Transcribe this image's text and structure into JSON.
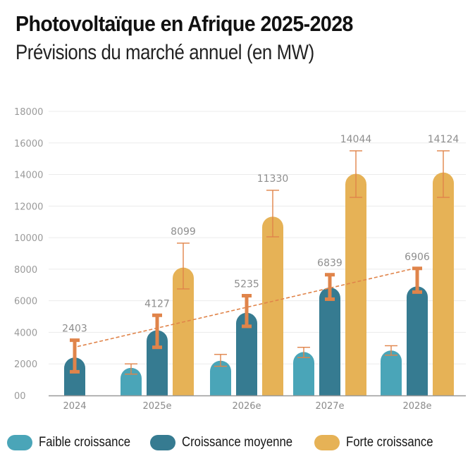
{
  "chart_data": {
    "type": "bar",
    "title": "Photovoltaïque en Afrique 2025-2028",
    "subtitle": "Prévisions du marché annuel (en MW)",
    "xlabel": "",
    "ylabel": "",
    "ylim": [
      0,
      18000
    ],
    "grid": true,
    "legend_position": "bottom",
    "y_ticks": [
      {
        "value": 0,
        "label": "00"
      },
      {
        "value": 2000,
        "label": "2000"
      },
      {
        "value": 4000,
        "label": "4000"
      },
      {
        "value": 6000,
        "label": "6000"
      },
      {
        "value": 8000,
        "label": "8000"
      },
      {
        "value": 10000,
        "label": "10000"
      },
      {
        "value": 12000,
        "label": "12000"
      },
      {
        "value": 14000,
        "label": "14000"
      },
      {
        "value": 16000,
        "label": "16000"
      },
      {
        "value": 18000,
        "label": "18000"
      }
    ],
    "categories": [
      "2024",
      "2025e",
      "2026e",
      "2027e",
      "2028e"
    ],
    "series": [
      {
        "name": "Faible croissance",
        "color": "#4aa5b8",
        "values": [
          null,
          1750,
          2200,
          2750,
          2850
        ],
        "error_low": [
          null,
          1350,
          1850,
          2400,
          2550
        ],
        "error_high": [
          null,
          2000,
          2600,
          3050,
          3150
        ],
        "labels": [
          null,
          null,
          null,
          null,
          null
        ]
      },
      {
        "name": "Croissance moyenne",
        "color": "#367b91",
        "values": [
          2403,
          4127,
          5235,
          6839,
          6906
        ],
        "error_low": [
          1500,
          3050,
          4380,
          6100,
          6550
        ],
        "error_high": [
          3500,
          5080,
          6320,
          7650,
          8050
        ],
        "labels": [
          "2403",
          "4127",
          "5235",
          "6839",
          "6906"
        ]
      },
      {
        "name": "Forte croissance",
        "color": "#e6b256",
        "values": [
          null,
          8099,
          11330,
          14044,
          14124
        ],
        "error_low": [
          null,
          6750,
          10050,
          12550,
          12550
        ],
        "error_high": [
          null,
          9650,
          13000,
          15500,
          15500
        ],
        "labels": [
          null,
          "8099",
          "11330",
          "14044",
          "14124"
        ]
      }
    ],
    "trend_line": {
      "style": "dashed",
      "color": "#e0844a",
      "from": {
        "category": "2024",
        "value": 3100
      },
      "to": {
        "category": "2028e",
        "value": 8050
      }
    },
    "error_bar_color": "#e0844a",
    "grid_color": "#ebebeb",
    "axis_color": "#9a9a9a"
  }
}
